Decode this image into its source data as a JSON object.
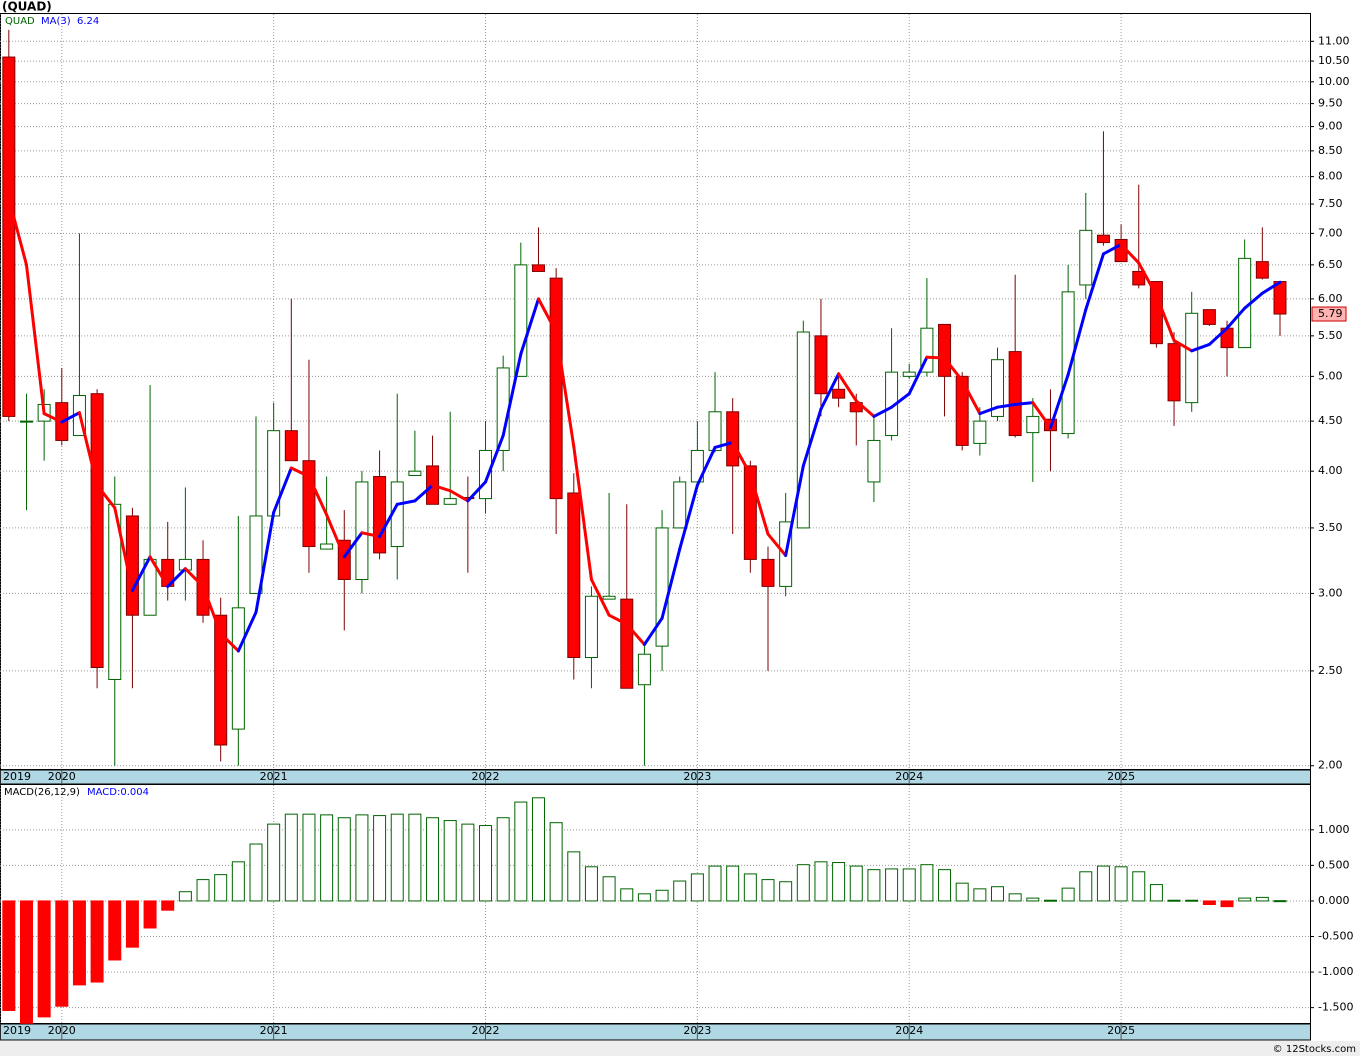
{
  "chart_data": [
    {
      "type": "candlestick",
      "title": "(QUAD)",
      "symbol": "QUAD",
      "log_scale": true,
      "grid": true,
      "up_color": "#006400",
      "down_color": "#ff0000",
      "down_edge": "#800000",
      "open": [
        10.6,
        4.49,
        4.5,
        4.7,
        4.35,
        4.8,
        2.45,
        3.6,
        2.85,
        3.25,
        3.17,
        3.25,
        2.85,
        2.18,
        3.0,
        3.6,
        4.4,
        4.1,
        3.33,
        3.4,
        3.1,
        3.95,
        3.35,
        3.96,
        4.05,
        3.7,
        3.76,
        3.75,
        4.2,
        5.0,
        6.5,
        6.3,
        3.8,
        2.58,
        2.96,
        2.96,
        2.42,
        2.65,
        3.5,
        3.9,
        4.2,
        4.6,
        4.05,
        3.25,
        3.05,
        3.5,
        5.5,
        4.85,
        4.7,
        3.9,
        4.35,
        5.0,
        5.05,
        5.65,
        5.0,
        4.27,
        4.55,
        5.3,
        4.38,
        4.52,
        4.37,
        6.2,
        6.97,
        6.9,
        6.4,
        6.25,
        5.4,
        4.7,
        5.85,
        5.6,
        5.35,
        6.55,
        6.25
      ],
      "high": [
        11.3,
        4.8,
        4.85,
        5.1,
        7.0,
        4.85,
        3.95,
        3.67,
        4.9,
        3.55,
        3.85,
        3.4,
        2.97,
        3.6,
        4.55,
        4.7,
        6.0,
        5.2,
        3.95,
        3.65,
        4.0,
        4.2,
        4.8,
        4.4,
        4.35,
        4.6,
        3.95,
        4.5,
        5.25,
        6.85,
        7.1,
        6.45,
        3.98,
        3.05,
        3.8,
        3.7,
        2.65,
        3.65,
        3.95,
        4.5,
        5.05,
        4.75,
        4.1,
        3.35,
        3.8,
        5.7,
        6.0,
        5.05,
        4.8,
        4.55,
        5.6,
        5.15,
        6.3,
        5.65,
        5.05,
        4.65,
        5.35,
        6.35,
        4.75,
        4.85,
        6.5,
        7.7,
        8.9,
        7.15,
        7.85,
        6.25,
        5.55,
        6.1,
        5.85,
        5.7,
        6.9,
        7.1,
        6.25
      ],
      "low": [
        4.5,
        3.65,
        4.1,
        4.25,
        4.35,
        2.4,
        2.0,
        2.4,
        2.85,
        2.95,
        2.95,
        2.8,
        2.02,
        2.0,
        3.0,
        3.6,
        4.1,
        3.15,
        3.33,
        2.75,
        3.0,
        3.25,
        3.1,
        3.96,
        3.7,
        3.7,
        3.15,
        3.62,
        4.0,
        5.0,
        6.4,
        3.45,
        2.45,
        2.4,
        2.96,
        2.4,
        2.0,
        2.5,
        3.5,
        3.85,
        4.18,
        3.45,
        3.15,
        2.5,
        2.98,
        3.5,
        4.55,
        4.65,
        4.25,
        3.72,
        4.3,
        4.97,
        5.0,
        4.55,
        4.2,
        4.15,
        4.5,
        4.33,
        3.9,
        4.0,
        4.32,
        6.0,
        6.8,
        6.55,
        6.15,
        5.35,
        4.45,
        4.6,
        5.63,
        5.0,
        5.35,
        6.28,
        5.5
      ],
      "close": [
        4.55,
        4.5,
        4.68,
        4.3,
        4.78,
        2.52,
        3.7,
        2.85,
        3.25,
        3.05,
        3.25,
        2.85,
        2.1,
        2.9,
        3.6,
        4.4,
        4.1,
        3.35,
        3.37,
        3.1,
        3.9,
        3.3,
        3.9,
        4.0,
        3.7,
        3.75,
        3.75,
        4.2,
        5.1,
        6.5,
        6.4,
        3.75,
        2.58,
        2.98,
        2.98,
        2.4,
        2.6,
        3.5,
        3.9,
        4.2,
        4.6,
        4.05,
        3.25,
        3.05,
        3.55,
        5.55,
        4.8,
        4.75,
        4.6,
        4.3,
        5.05,
        5.05,
        5.6,
        5.0,
        4.25,
        4.5,
        5.2,
        4.35,
        4.55,
        4.4,
        6.1,
        7.05,
        6.85,
        6.55,
        6.2,
        5.4,
        4.72,
        5.8,
        5.65,
        5.35,
        6.6,
        6.3,
        5.79
      ],
      "ma": {
        "name": "MA(3)",
        "up_color": "#0000ff",
        "down_color": "#ff0000",
        "values": [
          7.6,
          6.5,
          4.58,
          4.49,
          4.59,
          3.87,
          3.67,
          3.02,
          3.27,
          3.05,
          3.18,
          3.05,
          2.73,
          2.62,
          2.87,
          3.63,
          4.03,
          3.95,
          3.61,
          3.27,
          3.46,
          3.43,
          3.7,
          3.73,
          3.87,
          3.82,
          3.73,
          3.9,
          4.35,
          5.27,
          6.0,
          5.55,
          4.24,
          3.1,
          2.85,
          2.79,
          2.66,
          2.83,
          3.33,
          3.87,
          4.23,
          4.28,
          3.97,
          3.45,
          3.28,
          4.05,
          4.63,
          5.03,
          4.72,
          4.55,
          4.65,
          4.8,
          5.23,
          5.22,
          4.95,
          4.58,
          4.65,
          4.68,
          4.7,
          4.43,
          5.02,
          5.85,
          6.67,
          6.82,
          6.53,
          6.05,
          5.44,
          5.31,
          5.39,
          5.6,
          5.87,
          6.08,
          6.24
        ]
      },
      "xlim": [
        -0.5,
        73.7
      ],
      "xticks": [
        {
          "value": -0.5,
          "label": "2019"
        },
        {
          "value": 3,
          "label": "2020"
        },
        {
          "value": 15,
          "label": "2021"
        },
        {
          "value": 27,
          "label": "2022"
        },
        {
          "value": 39,
          "label": "2023"
        },
        {
          "value": 51,
          "label": "2024"
        },
        {
          "value": 63,
          "label": "2025"
        }
      ],
      "ylim": [
        1.98,
        11.73
      ],
      "yticks": [
        {
          "value": 2,
          "label": "2.00"
        },
        {
          "value": 2.5,
          "label": "2.50"
        },
        {
          "value": 3,
          "label": "3.00"
        },
        {
          "value": 3.5,
          "label": "3.50"
        },
        {
          "value": 4,
          "label": "4.00"
        },
        {
          "value": 4.5,
          "label": "4.50"
        },
        {
          "value": 5,
          "label": "5.00"
        },
        {
          "value": 5.5,
          "label": "5.50"
        },
        {
          "value": 6,
          "label": "6.00"
        },
        {
          "value": 6.5,
          "label": "6.50"
        },
        {
          "value": 7,
          "label": "7.00"
        },
        {
          "value": 7.5,
          "label": "7.50"
        },
        {
          "value": 8,
          "label": "8.00"
        },
        {
          "value": 8.5,
          "label": "8.50"
        },
        {
          "value": 9,
          "label": "9.00"
        },
        {
          "value": 9.5,
          "label": "9.50"
        },
        {
          "value": 10,
          "label": "10.00"
        },
        {
          "value": 10.5,
          "label": "10.50"
        },
        {
          "value": 11,
          "label": "11.00"
        }
      ]
    },
    {
      "type": "bar",
      "title": "MACD(26,12,9)",
      "legend": "MACD:0.004",
      "grid": true,
      "pos_color": "#006400",
      "neg_color": "#ff0000",
      "values": [
        -1.54,
        -1.72,
        -1.63,
        -1.48,
        -1.18,
        -1.14,
        -0.83,
        -0.65,
        -0.38,
        -0.13,
        0.13,
        0.3,
        0.37,
        0.55,
        0.8,
        1.08,
        1.22,
        1.22,
        1.21,
        1.17,
        1.21,
        1.2,
        1.22,
        1.22,
        1.17,
        1.13,
        1.08,
        1.06,
        1.17,
        1.39,
        1.45,
        1.1,
        0.69,
        0.48,
        0.34,
        0.17,
        0.1,
        0.15,
        0.28,
        0.38,
        0.49,
        0.49,
        0.38,
        0.3,
        0.27,
        0.51,
        0.55,
        0.54,
        0.49,
        0.44,
        0.45,
        0.45,
        0.51,
        0.44,
        0.25,
        0.17,
        0.2,
        0.1,
        0.04,
        0.01,
        0.18,
        0.41,
        0.49,
        0.48,
        0.41,
        0.23,
        0.01,
        0.01,
        -0.05,
        -0.08,
        0.04,
        0.05,
        0.004
      ],
      "xlim": [
        -0.5,
        73.7
      ],
      "xticks": [
        {
          "value": -0.5,
          "label": "2019"
        },
        {
          "value": 3,
          "label": "2020"
        },
        {
          "value": 15,
          "label": "2021"
        },
        {
          "value": 27,
          "label": "2022"
        },
        {
          "value": 39,
          "label": "2023"
        },
        {
          "value": 51,
          "label": "2024"
        },
        {
          "value": 63,
          "label": "2025"
        }
      ],
      "ylim": [
        -1.73,
        1.63
      ],
      "yticks": [
        {
          "value": -1.5,
          "label": "-1.500"
        },
        {
          "value": -1,
          "label": "-1.000"
        },
        {
          "value": -0.5,
          "label": "-0.500"
        },
        {
          "value": 0,
          "label": "0.000"
        },
        {
          "value": 0.5,
          "label": "0.500"
        },
        {
          "value": 1,
          "label": "1.000"
        }
      ]
    }
  ],
  "footer": "© 12Stocks.com"
}
